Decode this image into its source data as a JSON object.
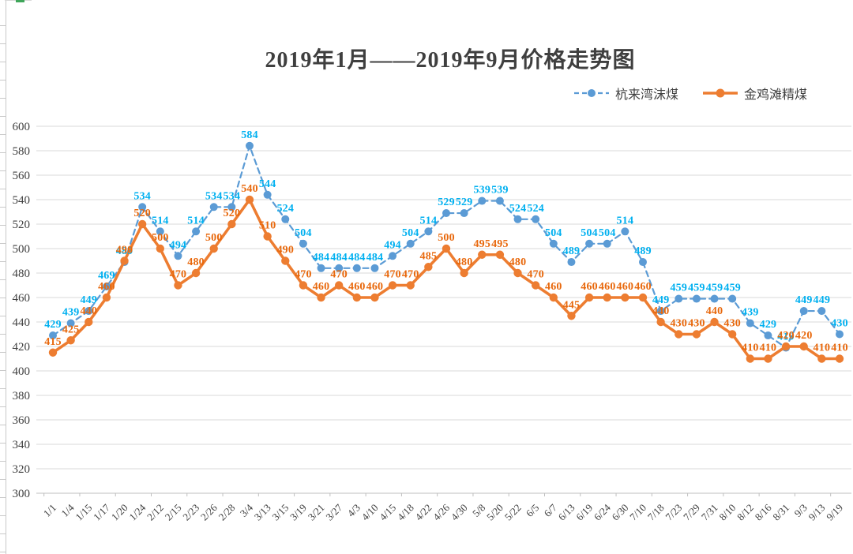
{
  "title": "2019年1月——2019年9月价格走势图",
  "colors": {
    "blue_series": "#5B9BD5",
    "blue_data_label": "#00B0F0",
    "orange_series": "#ED7D31",
    "orange_data_label": "#E8680C",
    "gridline": "#D9D9D9",
    "axis_line": "#BFBFBF",
    "axis_text": "#404040",
    "title_text": "#3F3F3F"
  },
  "legend": {
    "position": "top-right",
    "items": [
      {
        "label": "杭来湾沫煤",
        "marker": "dashed-line-with-dot"
      },
      {
        "label": "金鸡滩精煤",
        "marker": "solid-line-with-dot"
      }
    ]
  },
  "chart_data": {
    "type": "line",
    "title": "2019年1月——2019年9月价格走势图",
    "xlabel": "",
    "ylabel": "",
    "ylim": [
      300,
      600
    ],
    "ytick_step": 20,
    "grid": "horizontal",
    "legend_position": "top-right",
    "data_labels": true,
    "x_tick_label_rotation": 45,
    "categories": [
      "1/1",
      "1/4",
      "1/15",
      "1/17",
      "1/20",
      "1/24",
      "2/12",
      "2/15",
      "2/23",
      "2/26",
      "2/28",
      "3/4",
      "3/13",
      "3/15",
      "3/19",
      "3/21",
      "3/27",
      "4/3",
      "4/10",
      "4/15",
      "4/18",
      "4/22",
      "4/26",
      "4/30",
      "5/8",
      "5/20",
      "5/22",
      "6/5",
      "6/7",
      "6/13",
      "6/19",
      "6/24",
      "6/30",
      "7/10",
      "7/18",
      "7/23",
      "7/29",
      "7/31",
      "8/10",
      "8/12",
      "8/16",
      "8/31",
      "9/3",
      "9/13",
      "9/19"
    ],
    "series": [
      {
        "name": "杭来湾沫煤",
        "style": "dashed",
        "color": "#5B9BD5",
        "label_color": "#00B0F0",
        "values": [
          429,
          439,
          449,
          469,
          489,
          534,
          514,
          494,
          514,
          534,
          534,
          584,
          544,
          524,
          504,
          484,
          484,
          484,
          484,
          494,
          504,
          514,
          529,
          529,
          539,
          539,
          524,
          524,
          504,
          489,
          504,
          504,
          514,
          489,
          449,
          459,
          459,
          459,
          459,
          439,
          429,
          419,
          449,
          449,
          430
        ]
      },
      {
        "name": "金鸡滩精煤",
        "style": "solid",
        "color": "#ED7D31",
        "label_color": "#E8680C",
        "values": [
          415,
          425,
          440,
          460,
          490,
          520,
          500,
          470,
          480,
          500,
          520,
          540,
          510,
          490,
          470,
          460,
          470,
          460,
          460,
          470,
          470,
          485,
          500,
          480,
          495,
          495,
          480,
          470,
          460,
          445,
          460,
          460,
          460,
          460,
          440,
          430,
          430,
          440,
          430,
          410,
          410,
          420,
          420,
          410,
          410
        ]
      }
    ]
  }
}
